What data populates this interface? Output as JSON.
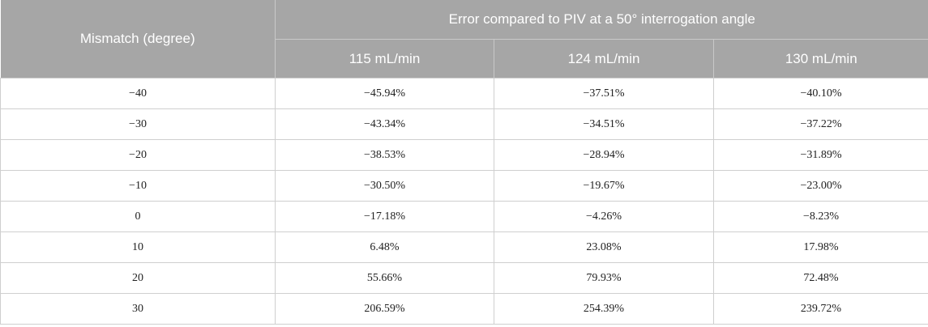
{
  "table": {
    "header": {
      "row_label": "Mismatch (degree)",
      "group_label": "Error compared to PIV at a 50° interrogation angle",
      "columns": [
        "115 mL/min",
        "124 mL/min",
        "130 mL/min"
      ]
    },
    "rows": [
      {
        "mismatch": "−40",
        "values": [
          "−45.94%",
          "−37.51%",
          "−40.10%"
        ]
      },
      {
        "mismatch": "−30",
        "values": [
          "−43.34%",
          "−34.51%",
          "−37.22%"
        ]
      },
      {
        "mismatch": "−20",
        "values": [
          "−38.53%",
          "−28.94%",
          "−31.89%"
        ]
      },
      {
        "mismatch": "−10",
        "values": [
          "−30.50%",
          "−19.67%",
          "−23.00%"
        ]
      },
      {
        "mismatch": "0",
        "values": [
          "−17.18%",
          "−4.26%",
          "−8.23%"
        ]
      },
      {
        "mismatch": "10",
        "values": [
          "6.48%",
          "23.08%",
          "17.98%"
        ]
      },
      {
        "mismatch": "20",
        "values": [
          "55.66%",
          "79.93%",
          "72.48%"
        ]
      },
      {
        "mismatch": "30",
        "values": [
          "206.59%",
          "254.39%",
          "239.72%"
        ]
      }
    ]
  }
}
